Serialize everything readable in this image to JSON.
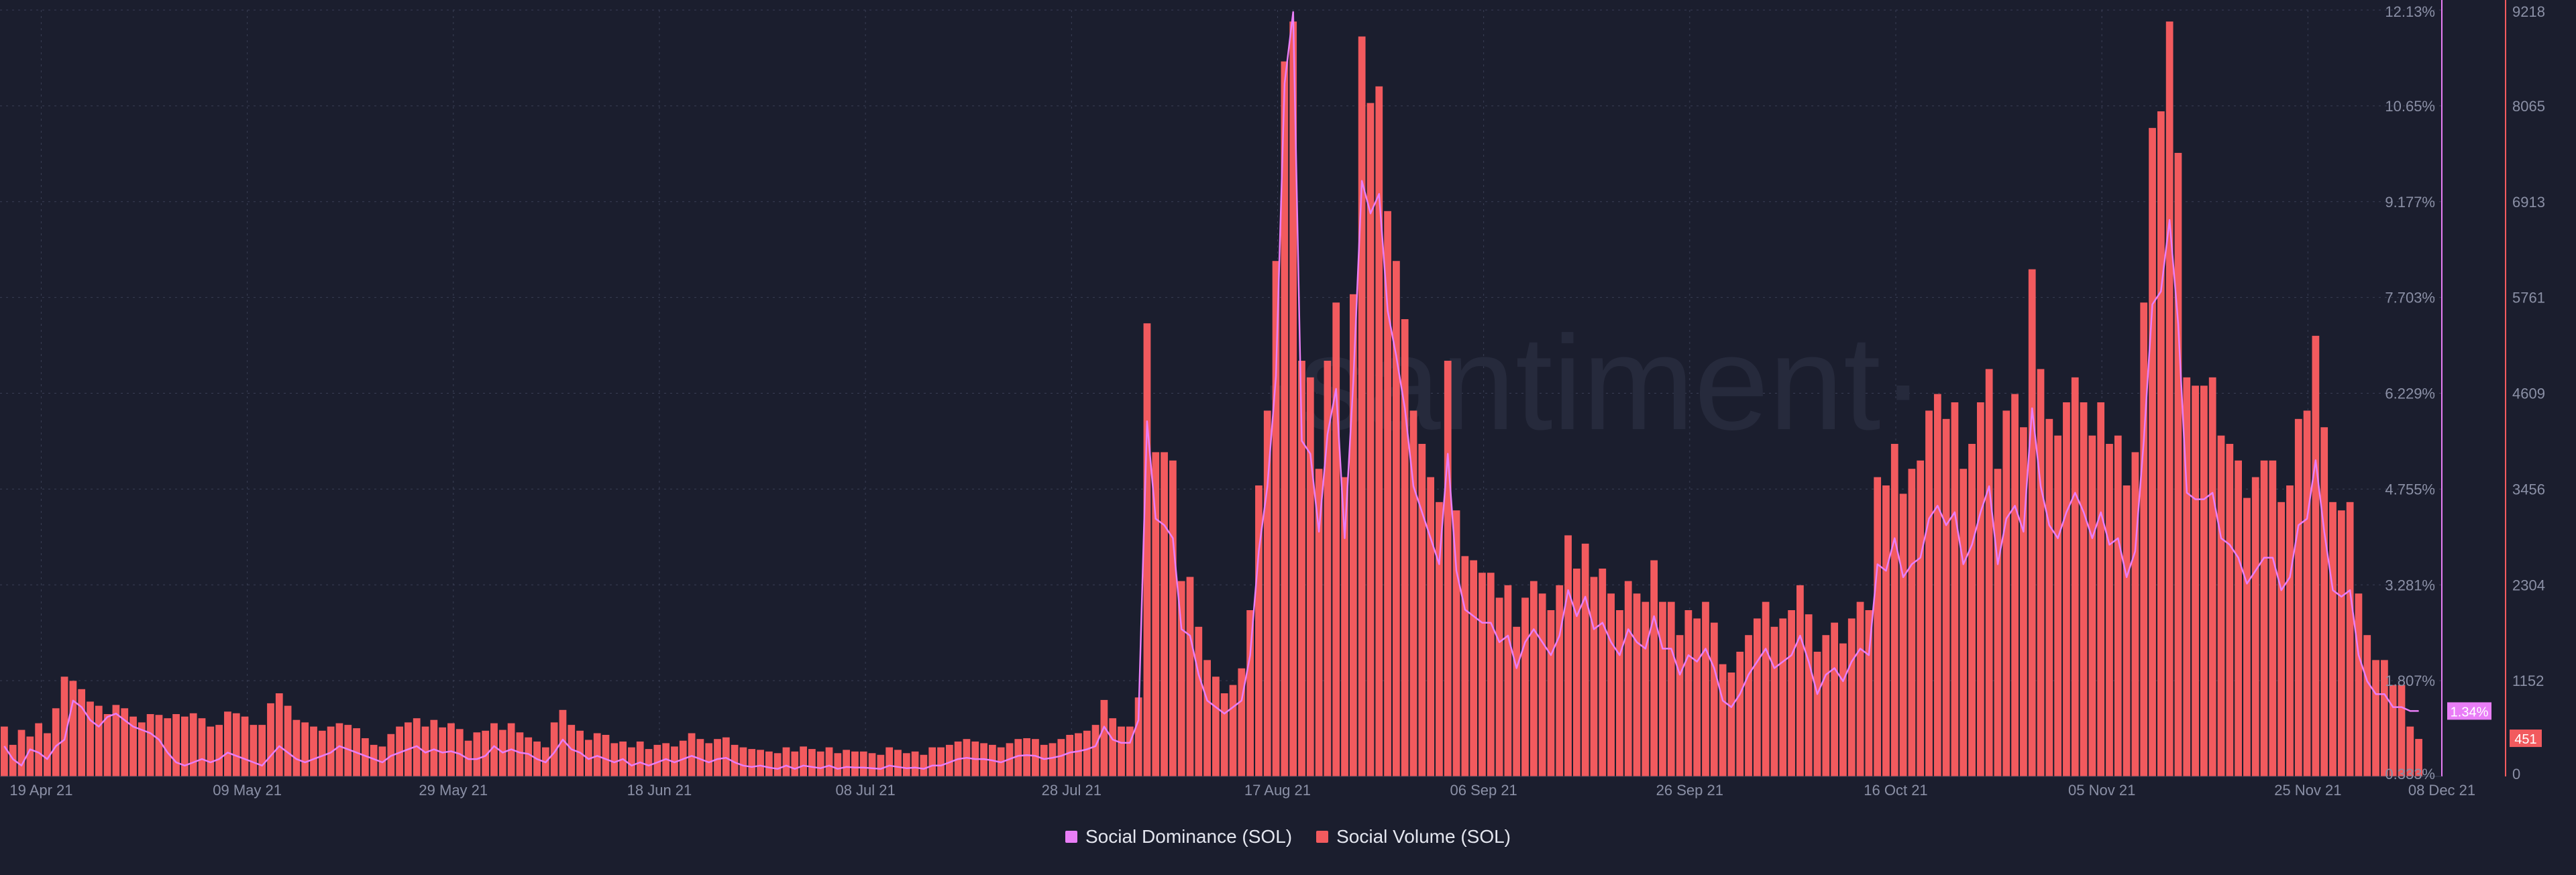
{
  "watermark": "·santiment·",
  "colors": {
    "background": "#1b1e2e",
    "dominance": "#e97ef7",
    "volume": "#f25a5e",
    "grid": "#3a3f55",
    "tick": "#8b90a6"
  },
  "legend": {
    "dominance": "Social Dominance (SOL)",
    "volume": "Social Volume (SOL)"
  },
  "chart_data": {
    "type": "bar",
    "title": "",
    "x_start": "2021-04-15",
    "x_end": "2021-12-08",
    "x_tick_labels": [
      "19 Apr 21",
      "09 May 21",
      "29 May 21",
      "18 Jun 21",
      "08 Jul 21",
      "28 Jul 21",
      "17 Aug 21",
      "06 Sep 21",
      "26 Sep 21",
      "16 Oct 21",
      "05 Nov 21",
      "25 Nov 21",
      "08 Dec 21"
    ],
    "x_tick_dates": [
      "2021-04-19",
      "2021-05-09",
      "2021-05-29",
      "2021-06-18",
      "2021-07-08",
      "2021-07-28",
      "2021-08-17",
      "2021-09-06",
      "2021-09-26",
      "2021-10-16",
      "2021-11-05",
      "2021-11-25",
      "2021-12-08"
    ],
    "grid": true,
    "legend_position": "bottom",
    "series": [
      {
        "name": "Social Volume (SOL)",
        "type": "bar",
        "axis": "right-outer",
        "ylim": [
          0,
          9218
        ],
        "y_ticks": [
          "0",
          "1152",
          "2304",
          "3456",
          "4609",
          "5761",
          "6913",
          "8065",
          "9218"
        ],
        "last_value_label": "451",
        "values": [
          600,
          380,
          560,
          480,
          640,
          520,
          820,
          1200,
          1150,
          1050,
          900,
          850,
          750,
          860,
          820,
          720,
          650,
          750,
          740,
          700,
          750,
          720,
          760,
          700,
          600,
          620,
          780,
          760,
          720,
          620,
          620,
          880,
          1000,
          850,
          680,
          650,
          600,
          550,
          600,
          640,
          620,
          580,
          460,
          380,
          360,
          510,
          600,
          650,
          700,
          600,
          680,
          590,
          640,
          570,
          430,
          530,
          550,
          640,
          560,
          640,
          530,
          470,
          420,
          350,
          650,
          800,
          620,
          550,
          440,
          520,
          500,
          400,
          420,
          350,
          420,
          330,
          380,
          400,
          360,
          430,
          520,
          450,
          400,
          450,
          470,
          380,
          350,
          330,
          320,
          300,
          280,
          350,
          300,
          360,
          330,
          300,
          350,
          280,
          320,
          300,
          300,
          280,
          260,
          350,
          320,
          280,
          300,
          260,
          350,
          350,
          380,
          420,
          450,
          420,
          400,
          380,
          350,
          400,
          450,
          460,
          450,
          380,
          400,
          450,
          500,
          520,
          550,
          620,
          920,
          700,
          600,
          600,
          950,
          5450,
          3900,
          3900,
          3800,
          2350,
          2400,
          1800,
          1400,
          1200,
          1000,
          1100,
          1300,
          2000,
          3500,
          4400,
          6200,
          8600,
          9080,
          5000,
          4800,
          3700,
          5000,
          5700,
          3600,
          5800,
          8900,
          8100,
          8300,
          6800,
          6200,
          5500,
          4400,
          4000,
          3600,
          3300,
          5000,
          3200,
          2650,
          2600,
          2450,
          2450,
          2150,
          2300,
          1800,
          2150,
          2350,
          2200,
          2000,
          2300,
          2900,
          2500,
          2800,
          2400,
          2500,
          2200,
          2000,
          2350,
          2200,
          2100,
          2600,
          2100,
          2100,
          1700,
          2000,
          1900,
          2100,
          1850,
          1350,
          1250,
          1500,
          1700,
          1900,
          2100,
          1800,
          1900,
          2000,
          2300,
          1950,
          1500,
          1700,
          1850,
          1600,
          1900,
          2100,
          2000,
          3600,
          3500,
          4000,
          3400,
          3700,
          3800,
          4400,
          4600,
          4300,
          4500,
          3700,
          4000,
          4500,
          4900,
          3700,
          4400,
          4600,
          4200,
          6100,
          4900,
          4300,
          4100,
          4500,
          4800,
          4500,
          4100,
          4500,
          4000,
          4100,
          3500,
          3900,
          5700,
          7800,
          8000,
          9080,
          7500,
          4800,
          4700,
          4700,
          4800,
          4100,
          4000,
          3800,
          3350,
          3600,
          3800,
          3800,
          3300,
          3500,
          4300,
          4400,
          5300,
          4200,
          3300,
          3200,
          3300,
          2200,
          1700,
          1400,
          1400,
          1100,
          1100,
          600,
          451
        ]
      },
      {
        "name": "Social Dominance (SOL)",
        "type": "line",
        "axis": "right-inner",
        "ylim": [
          0.333,
          12.13
        ],
        "y_ticks": [
          "0.333%",
          "1.807%",
          "3.281%",
          "4.755%",
          "6.229%",
          "7.703%",
          "9.177%",
          "10.65%",
          "12.13%"
        ],
        "last_value_label": "1.34%",
        "values": [
          0.8,
          0.6,
          0.5,
          0.75,
          0.7,
          0.6,
          0.8,
          0.9,
          1.5,
          1.4,
          1.2,
          1.1,
          1.25,
          1.3,
          1.2,
          1.1,
          1.05,
          1.0,
          0.9,
          0.7,
          0.55,
          0.5,
          0.55,
          0.6,
          0.55,
          0.6,
          0.7,
          0.65,
          0.6,
          0.55,
          0.5,
          0.65,
          0.8,
          0.7,
          0.6,
          0.55,
          0.6,
          0.65,
          0.7,
          0.8,
          0.75,
          0.7,
          0.65,
          0.6,
          0.55,
          0.65,
          0.7,
          0.75,
          0.8,
          0.7,
          0.75,
          0.7,
          0.72,
          0.68,
          0.6,
          0.6,
          0.65,
          0.8,
          0.7,
          0.75,
          0.7,
          0.68,
          0.6,
          0.55,
          0.7,
          0.9,
          0.75,
          0.7,
          0.6,
          0.65,
          0.6,
          0.55,
          0.6,
          0.5,
          0.55,
          0.5,
          0.55,
          0.6,
          0.55,
          0.6,
          0.65,
          0.6,
          0.55,
          0.6,
          0.62,
          0.55,
          0.5,
          0.48,
          0.5,
          0.47,
          0.45,
          0.5,
          0.45,
          0.5,
          0.48,
          0.46,
          0.5,
          0.45,
          0.48,
          0.47,
          0.47,
          0.46,
          0.45,
          0.5,
          0.48,
          0.46,
          0.47,
          0.45,
          0.5,
          0.5,
          0.55,
          0.6,
          0.62,
          0.6,
          0.6,
          0.58,
          0.55,
          0.6,
          0.65,
          0.66,
          0.65,
          0.6,
          0.62,
          0.65,
          0.7,
          0.72,
          0.75,
          0.8,
          1.1,
          0.9,
          0.85,
          0.85,
          1.2,
          5.8,
          4.3,
          4.2,
          4.0,
          2.6,
          2.5,
          1.9,
          1.5,
          1.4,
          1.3,
          1.4,
          1.5,
          2.2,
          3.8,
          4.8,
          6.5,
          11.0,
          12.1,
          5.5,
          5.3,
          4.1,
          5.6,
          6.3,
          4.0,
          6.4,
          9.5,
          9.0,
          9.3,
          7.5,
          6.8,
          6.0,
          4.8,
          4.4,
          4.0,
          3.6,
          5.3,
          3.5,
          2.9,
          2.8,
          2.7,
          2.7,
          2.4,
          2.5,
          2.0,
          2.4,
          2.6,
          2.4,
          2.2,
          2.5,
          3.2,
          2.8,
          3.1,
          2.6,
          2.7,
          2.4,
          2.2,
          2.6,
          2.4,
          2.3,
          2.8,
          2.3,
          2.3,
          1.9,
          2.2,
          2.1,
          2.3,
          2.0,
          1.5,
          1.4,
          1.6,
          1.9,
          2.1,
          2.3,
          2.0,
          2.1,
          2.2,
          2.5,
          2.1,
          1.6,
          1.9,
          2.0,
          1.8,
          2.1,
          2.3,
          2.2,
          3.6,
          3.5,
          4.0,
          3.4,
          3.6,
          3.7,
          4.3,
          4.5,
          4.2,
          4.4,
          3.6,
          3.9,
          4.4,
          4.8,
          3.6,
          4.3,
          4.5,
          4.1,
          6.0,
          4.8,
          4.2,
          4.0,
          4.4,
          4.7,
          4.4,
          4.0,
          4.4,
          3.9,
          4.0,
          3.4,
          3.8,
          5.5,
          7.6,
          7.8,
          8.9,
          7.3,
          4.7,
          4.6,
          4.6,
          4.7,
          4.0,
          3.9,
          3.7,
          3.3,
          3.5,
          3.7,
          3.7,
          3.2,
          3.4,
          4.2,
          4.3,
          5.2,
          4.1,
          3.2,
          3.1,
          3.2,
          2.2,
          1.8,
          1.6,
          1.6,
          1.4,
          1.4,
          1.34,
          1.34
        ]
      }
    ]
  }
}
